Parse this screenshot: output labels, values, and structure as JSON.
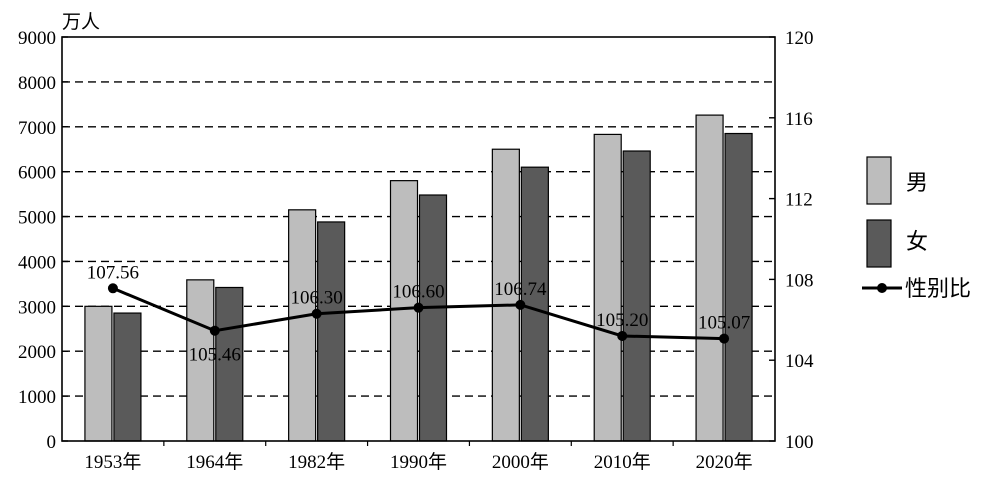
{
  "chart_data": {
    "type": "bar",
    "unit_label": "万人",
    "categories": [
      "1953年",
      "1964年",
      "1982年",
      "1990年",
      "2000年",
      "2010年",
      "2020年"
    ],
    "series": [
      {
        "name": "男",
        "values": [
          3000,
          3590,
          5150,
          5800,
          6500,
          6830,
          7260
        ],
        "color": "#bdbdbd"
      },
      {
        "name": "女",
        "values": [
          2850,
          3420,
          4880,
          5480,
          6100,
          6460,
          6850
        ],
        "color": "#5a5a5a"
      }
    ],
    "line_series": {
      "name": "性别比",
      "values": [
        107.56,
        105.46,
        106.3,
        106.6,
        106.74,
        105.2,
        105.07
      ],
      "labels": [
        "107.56",
        "105.46",
        "106.30",
        "106.60",
        "106.74",
        "105.20",
        "105.07"
      ]
    },
    "ylim": [
      0,
      9000
    ],
    "y_ticks": [
      "0",
      "1000",
      "2000",
      "3000",
      "4000",
      "5000",
      "6000",
      "7000",
      "8000",
      "9000"
    ],
    "y2lim": [
      100,
      120
    ],
    "y2_ticks": [
      "100",
      "104",
      "108",
      "112",
      "116",
      "120"
    ],
    "grid": "horizontal-dashed",
    "legend_position": "right"
  }
}
